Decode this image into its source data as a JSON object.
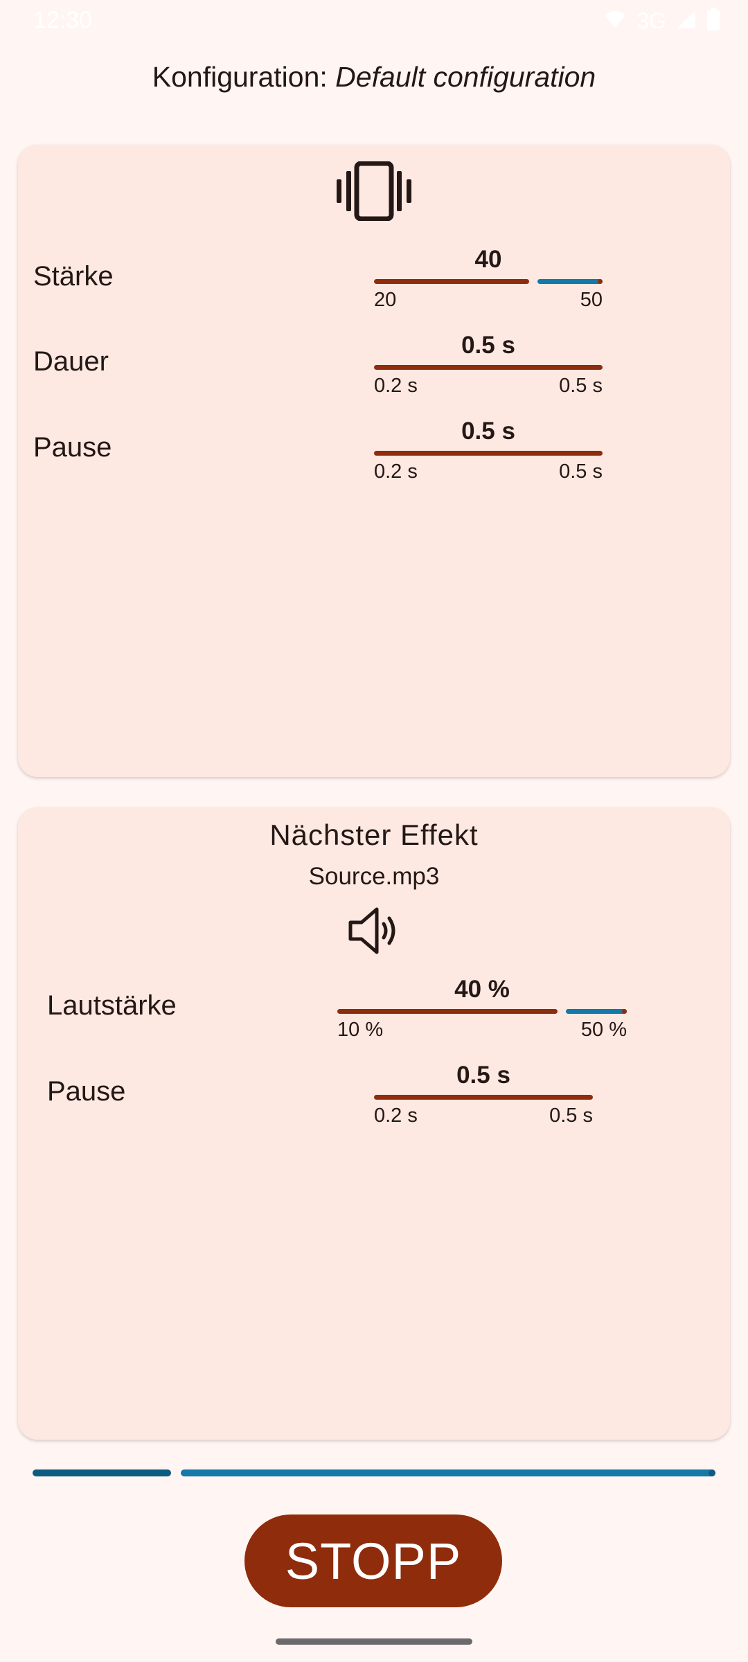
{
  "status_bar": {
    "time": "12:30",
    "network": "3G",
    "wifi_icon": "wifi-icon",
    "signal_icon": "signal-icon",
    "battery_icon": "battery-icon"
  },
  "config": {
    "label": "Konfiguration:",
    "name": "Default configuration"
  },
  "vibration_card": {
    "icon": "vibration-icon",
    "sliders": [
      {
        "label": "Stärke",
        "value": "40",
        "min": "20",
        "max": "50",
        "fraction": 0.67,
        "has_inactive": true
      },
      {
        "label": "Dauer",
        "value": "0.5 s",
        "min": "0.2 s",
        "max": "0.5 s",
        "fraction": 1.0,
        "has_inactive": false
      },
      {
        "label": "Pause",
        "value": "0.5 s",
        "min": "0.2 s",
        "max": "0.5 s",
        "fraction": 1.0,
        "has_inactive": false
      }
    ]
  },
  "sound_card": {
    "heading": "Nächster Effekt",
    "file": "Source.mp3",
    "icon": "speaker-icon",
    "sliders": [
      {
        "label": "Lautstärke",
        "value": "40 %",
        "min": "10 %",
        "max": "50 %",
        "fraction": 0.75,
        "has_inactive": true
      },
      {
        "label": "Pause",
        "value": "0.5 s",
        "min": "0.2 s",
        "max": "0.5 s",
        "fraction": 1.0,
        "has_inactive": false
      }
    ]
  },
  "progress": {
    "fraction": 0.2
  },
  "stop_button": {
    "label": "STOPP"
  },
  "colors": {
    "accent": "#8f2c0b",
    "inactive_track": "#1478a8",
    "card_bg": "#fde8e2",
    "page_bg": "#fff5f2"
  }
}
